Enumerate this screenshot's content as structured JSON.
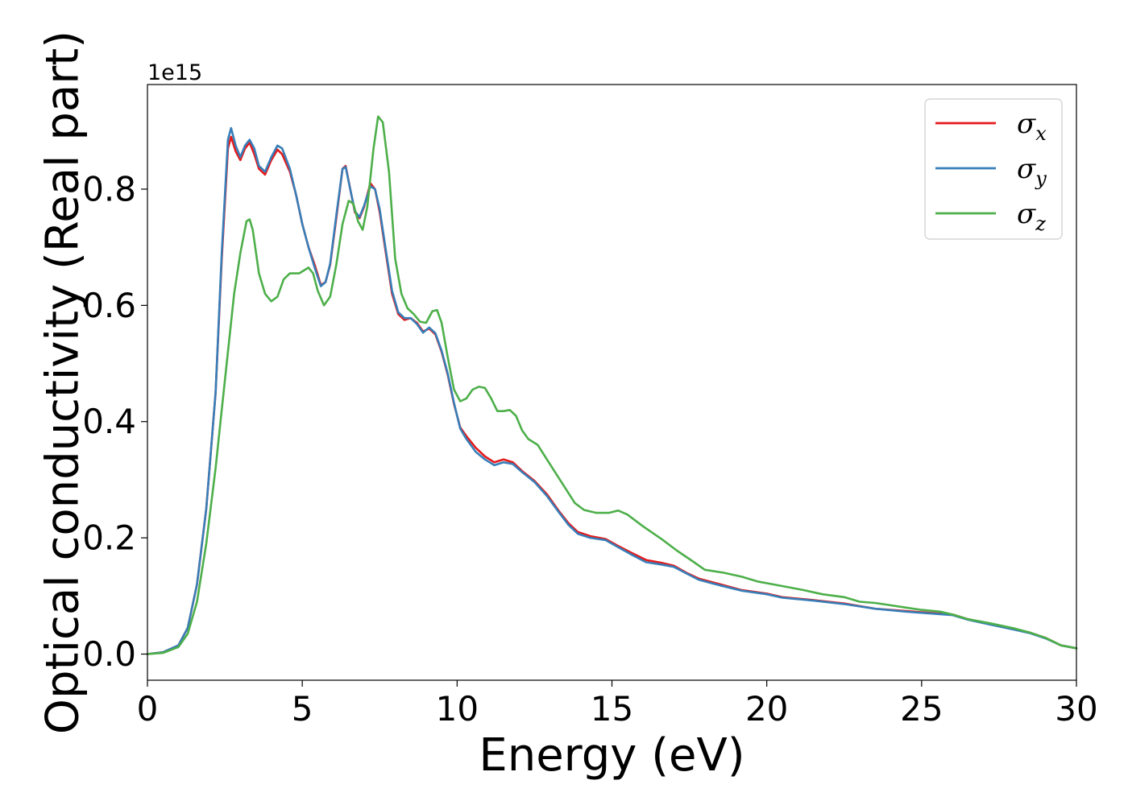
{
  "chart_data": {
    "type": "line",
    "xlabel": "Energy (eV)",
    "ylabel": "Optical conductivity (Real part)",
    "y_offset_label": "1e15",
    "xlim": [
      0,
      30
    ],
    "ylim": [
      -0.045,
      0.98
    ],
    "x_ticks": [
      0,
      5,
      10,
      15,
      20,
      25,
      30
    ],
    "x_tick_labels": [
      "0",
      "5",
      "10",
      "15",
      "20",
      "25",
      "30"
    ],
    "y_ticks": [
      0.0,
      0.2,
      0.4,
      0.6,
      0.8
    ],
    "y_tick_labels": [
      "0.0",
      "0.2",
      "0.4",
      "0.6",
      "0.8"
    ],
    "grid": false,
    "legend_position": "top-right",
    "series": [
      {
        "name": "σx",
        "symbol": "σ",
        "subscript": "x",
        "color": "#e41a1c",
        "points": [
          [
            0,
            0
          ],
          [
            0.5,
            0.003
          ],
          [
            1.0,
            0.015
          ],
          [
            1.3,
            0.045
          ],
          [
            1.6,
            0.12
          ],
          [
            1.9,
            0.25
          ],
          [
            2.2,
            0.45
          ],
          [
            2.4,
            0.68
          ],
          [
            2.6,
            0.87
          ],
          [
            2.7,
            0.89
          ],
          [
            2.85,
            0.865
          ],
          [
            3.0,
            0.85
          ],
          [
            3.15,
            0.87
          ],
          [
            3.3,
            0.88
          ],
          [
            3.45,
            0.86
          ],
          [
            3.6,
            0.835
          ],
          [
            3.8,
            0.825
          ],
          [
            4.0,
            0.85
          ],
          [
            4.2,
            0.868
          ],
          [
            4.35,
            0.86
          ],
          [
            4.6,
            0.83
          ],
          [
            4.8,
            0.79
          ],
          [
            5.0,
            0.74
          ],
          [
            5.2,
            0.7
          ],
          [
            5.4,
            0.67
          ],
          [
            5.6,
            0.635
          ],
          [
            5.75,
            0.64
          ],
          [
            5.9,
            0.67
          ],
          [
            6.1,
            0.75
          ],
          [
            6.3,
            0.835
          ],
          [
            6.4,
            0.84
          ],
          [
            6.55,
            0.8
          ],
          [
            6.7,
            0.76
          ],
          [
            6.85,
            0.75
          ],
          [
            7.0,
            0.77
          ],
          [
            7.2,
            0.81
          ],
          [
            7.35,
            0.8
          ],
          [
            7.5,
            0.76
          ],
          [
            7.7,
            0.69
          ],
          [
            7.9,
            0.62
          ],
          [
            8.1,
            0.585
          ],
          [
            8.3,
            0.575
          ],
          [
            8.5,
            0.578
          ],
          [
            8.7,
            0.57
          ],
          [
            8.9,
            0.555
          ],
          [
            9.1,
            0.56
          ],
          [
            9.3,
            0.55
          ],
          [
            9.5,
            0.52
          ],
          [
            9.7,
            0.48
          ],
          [
            9.9,
            0.43
          ],
          [
            10.1,
            0.39
          ],
          [
            10.3,
            0.375
          ],
          [
            10.6,
            0.355
          ],
          [
            10.9,
            0.34
          ],
          [
            11.2,
            0.33
          ],
          [
            11.5,
            0.335
          ],
          [
            11.8,
            0.33
          ],
          [
            12.1,
            0.315
          ],
          [
            12.5,
            0.298
          ],
          [
            12.9,
            0.275
          ],
          [
            13.3,
            0.245
          ],
          [
            13.6,
            0.225
          ],
          [
            13.9,
            0.21
          ],
          [
            14.3,
            0.203
          ],
          [
            14.8,
            0.198
          ],
          [
            15.2,
            0.186
          ],
          [
            15.6,
            0.175
          ],
          [
            16.1,
            0.162
          ],
          [
            16.6,
            0.157
          ],
          [
            17.0,
            0.152
          ],
          [
            17.4,
            0.14
          ],
          [
            17.8,
            0.13
          ],
          [
            18.5,
            0.12
          ],
          [
            19.2,
            0.11
          ],
          [
            20.0,
            0.104
          ],
          [
            20.5,
            0.098
          ],
          [
            21.5,
            0.093
          ],
          [
            22.5,
            0.087
          ],
          [
            23.5,
            0.078
          ],
          [
            24.5,
            0.074
          ],
          [
            25.5,
            0.07
          ],
          [
            26.0,
            0.068
          ],
          [
            26.5,
            0.06
          ],
          [
            27.2,
            0.052
          ],
          [
            28.0,
            0.043
          ],
          [
            28.5,
            0.037
          ],
          [
            29.0,
            0.028
          ],
          [
            29.5,
            0.015
          ],
          [
            30.0,
            0.01
          ]
        ]
      },
      {
        "name": "σy",
        "symbol": "σ",
        "subscript": "y",
        "color": "#377eb8",
        "points": [
          [
            0,
            0
          ],
          [
            0.5,
            0.003
          ],
          [
            1.0,
            0.015
          ],
          [
            1.3,
            0.045
          ],
          [
            1.6,
            0.12
          ],
          [
            1.9,
            0.25
          ],
          [
            2.2,
            0.45
          ],
          [
            2.4,
            0.69
          ],
          [
            2.6,
            0.885
          ],
          [
            2.7,
            0.905
          ],
          [
            2.85,
            0.875
          ],
          [
            3.0,
            0.855
          ],
          [
            3.15,
            0.875
          ],
          [
            3.3,
            0.885
          ],
          [
            3.45,
            0.87
          ],
          [
            3.6,
            0.84
          ],
          [
            3.8,
            0.83
          ],
          [
            4.0,
            0.855
          ],
          [
            4.2,
            0.875
          ],
          [
            4.35,
            0.87
          ],
          [
            4.6,
            0.835
          ],
          [
            4.8,
            0.79
          ],
          [
            5.0,
            0.74
          ],
          [
            5.2,
            0.7
          ],
          [
            5.4,
            0.665
          ],
          [
            5.6,
            0.633
          ],
          [
            5.75,
            0.64
          ],
          [
            5.9,
            0.672
          ],
          [
            6.1,
            0.755
          ],
          [
            6.3,
            0.835
          ],
          [
            6.4,
            0.838
          ],
          [
            6.55,
            0.8
          ],
          [
            6.7,
            0.762
          ],
          [
            6.85,
            0.752
          ],
          [
            7.0,
            0.772
          ],
          [
            7.2,
            0.805
          ],
          [
            7.35,
            0.8
          ],
          [
            7.5,
            0.765
          ],
          [
            7.7,
            0.695
          ],
          [
            7.9,
            0.625
          ],
          [
            8.1,
            0.588
          ],
          [
            8.3,
            0.578
          ],
          [
            8.5,
            0.578
          ],
          [
            8.7,
            0.568
          ],
          [
            8.9,
            0.553
          ],
          [
            9.1,
            0.562
          ],
          [
            9.3,
            0.552
          ],
          [
            9.5,
            0.522
          ],
          [
            9.7,
            0.482
          ],
          [
            9.9,
            0.432
          ],
          [
            10.1,
            0.388
          ],
          [
            10.3,
            0.37
          ],
          [
            10.6,
            0.348
          ],
          [
            10.9,
            0.335
          ],
          [
            11.2,
            0.325
          ],
          [
            11.5,
            0.33
          ],
          [
            11.8,
            0.327
          ],
          [
            12.1,
            0.313
          ],
          [
            12.5,
            0.296
          ],
          [
            12.9,
            0.272
          ],
          [
            13.3,
            0.243
          ],
          [
            13.6,
            0.222
          ],
          [
            13.9,
            0.207
          ],
          [
            14.3,
            0.2
          ],
          [
            14.8,
            0.196
          ],
          [
            15.2,
            0.184
          ],
          [
            15.6,
            0.172
          ],
          [
            16.1,
            0.158
          ],
          [
            16.6,
            0.154
          ],
          [
            17.0,
            0.15
          ],
          [
            17.4,
            0.139
          ],
          [
            17.8,
            0.128
          ],
          [
            18.5,
            0.118
          ],
          [
            19.2,
            0.109
          ],
          [
            20.0,
            0.103
          ],
          [
            20.5,
            0.097
          ],
          [
            21.5,
            0.092
          ],
          [
            22.5,
            0.086
          ],
          [
            23.5,
            0.078
          ],
          [
            24.5,
            0.073
          ],
          [
            25.5,
            0.069
          ],
          [
            26.0,
            0.067
          ],
          [
            26.5,
            0.059
          ],
          [
            27.2,
            0.051
          ],
          [
            28.0,
            0.042
          ],
          [
            28.5,
            0.036
          ],
          [
            29.0,
            0.027
          ],
          [
            29.5,
            0.015
          ],
          [
            30.0,
            0.01
          ]
        ]
      },
      {
        "name": "σz",
        "symbol": "σ",
        "subscript": "z",
        "color": "#4daf4a",
        "points": [
          [
            0,
            0
          ],
          [
            0.5,
            0.002
          ],
          [
            1.0,
            0.012
          ],
          [
            1.3,
            0.035
          ],
          [
            1.6,
            0.09
          ],
          [
            1.9,
            0.19
          ],
          [
            2.2,
            0.32
          ],
          [
            2.4,
            0.42
          ],
          [
            2.6,
            0.52
          ],
          [
            2.8,
            0.62
          ],
          [
            3.0,
            0.69
          ],
          [
            3.2,
            0.745
          ],
          [
            3.3,
            0.748
          ],
          [
            3.4,
            0.73
          ],
          [
            3.6,
            0.655
          ],
          [
            3.8,
            0.62
          ],
          [
            4.0,
            0.607
          ],
          [
            4.2,
            0.615
          ],
          [
            4.4,
            0.645
          ],
          [
            4.6,
            0.655
          ],
          [
            4.9,
            0.655
          ],
          [
            5.2,
            0.665
          ],
          [
            5.35,
            0.655
          ],
          [
            5.5,
            0.625
          ],
          [
            5.7,
            0.6
          ],
          [
            5.9,
            0.615
          ],
          [
            6.1,
            0.67
          ],
          [
            6.3,
            0.74
          ],
          [
            6.5,
            0.78
          ],
          [
            6.65,
            0.775
          ],
          [
            6.8,
            0.745
          ],
          [
            6.95,
            0.73
          ],
          [
            7.1,
            0.77
          ],
          [
            7.3,
            0.87
          ],
          [
            7.45,
            0.925
          ],
          [
            7.6,
            0.915
          ],
          [
            7.8,
            0.83
          ],
          [
            8.0,
            0.68
          ],
          [
            8.2,
            0.62
          ],
          [
            8.4,
            0.595
          ],
          [
            8.6,
            0.585
          ],
          [
            8.8,
            0.572
          ],
          [
            9.0,
            0.57
          ],
          [
            9.2,
            0.59
          ],
          [
            9.35,
            0.592
          ],
          [
            9.5,
            0.57
          ],
          [
            9.7,
            0.51
          ],
          [
            9.9,
            0.455
          ],
          [
            10.1,
            0.435
          ],
          [
            10.3,
            0.44
          ],
          [
            10.5,
            0.455
          ],
          [
            10.7,
            0.46
          ],
          [
            10.9,
            0.458
          ],
          [
            11.1,
            0.44
          ],
          [
            11.3,
            0.418
          ],
          [
            11.5,
            0.418
          ],
          [
            11.7,
            0.42
          ],
          [
            11.9,
            0.41
          ],
          [
            12.1,
            0.385
          ],
          [
            12.3,
            0.37
          ],
          [
            12.6,
            0.36
          ],
          [
            12.9,
            0.335
          ],
          [
            13.2,
            0.31
          ],
          [
            13.5,
            0.285
          ],
          [
            13.8,
            0.26
          ],
          [
            14.1,
            0.248
          ],
          [
            14.5,
            0.243
          ],
          [
            14.9,
            0.243
          ],
          [
            15.2,
            0.247
          ],
          [
            15.5,
            0.24
          ],
          [
            16.0,
            0.22
          ],
          [
            16.6,
            0.198
          ],
          [
            17.1,
            0.178
          ],
          [
            17.6,
            0.16
          ],
          [
            18.0,
            0.145
          ],
          [
            18.6,
            0.14
          ],
          [
            19.2,
            0.133
          ],
          [
            19.7,
            0.125
          ],
          [
            20.2,
            0.12
          ],
          [
            20.7,
            0.115
          ],
          [
            21.2,
            0.11
          ],
          [
            21.8,
            0.103
          ],
          [
            22.5,
            0.098
          ],
          [
            23.0,
            0.09
          ],
          [
            23.5,
            0.088
          ],
          [
            24.0,
            0.084
          ],
          [
            24.5,
            0.08
          ],
          [
            25.0,
            0.076
          ],
          [
            25.6,
            0.073
          ],
          [
            26.0,
            0.068
          ],
          [
            26.5,
            0.06
          ],
          [
            27.2,
            0.053
          ],
          [
            28.0,
            0.044
          ],
          [
            28.5,
            0.037
          ],
          [
            29.0,
            0.028
          ],
          [
            29.5,
            0.015
          ],
          [
            30.0,
            0.01
          ]
        ]
      }
    ]
  }
}
